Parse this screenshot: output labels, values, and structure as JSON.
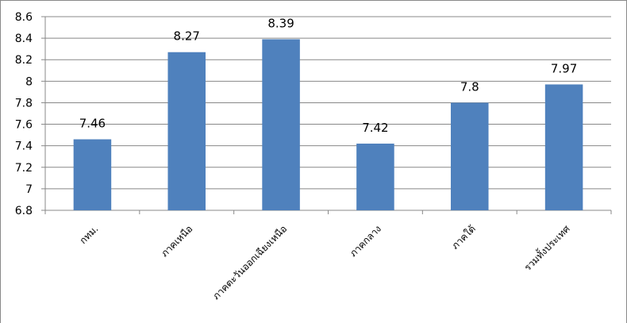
{
  "chart_data": {
    "type": "bar",
    "categories": [
      "กทม.",
      "ภาคเหนือ",
      "ภาคตะวันออกเฉียงเหนือ",
      "ภาคกลาง",
      "ภาคใต้",
      "รวมทั้งประเทศ"
    ],
    "values": [
      7.46,
      8.27,
      8.39,
      7.42,
      7.8,
      7.97
    ],
    "color": "#4f81bd",
    "ylim": [
      6.8,
      8.6
    ],
    "yticks": [
      6.8,
      7,
      7.2,
      7.4,
      7.6,
      7.8,
      8,
      8.2,
      8.4,
      8.6
    ],
    "grid": true
  }
}
